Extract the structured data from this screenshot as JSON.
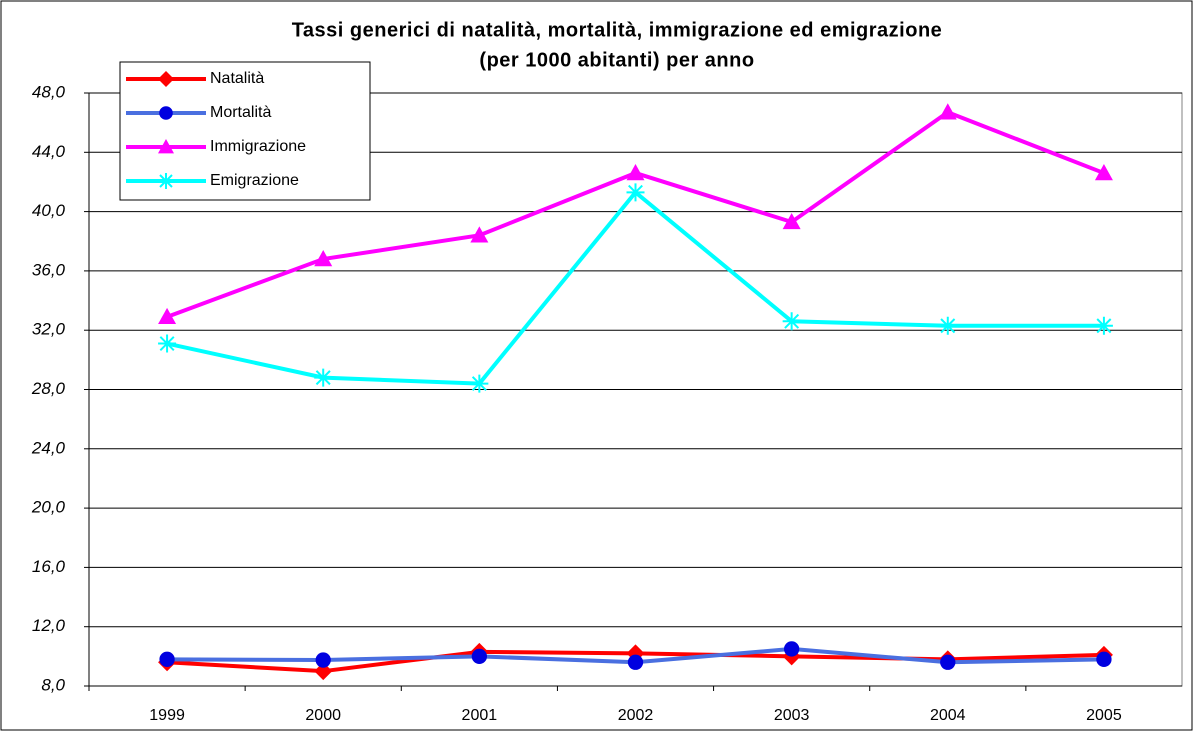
{
  "chart_data": {
    "type": "line",
    "title": "Tassi generici di natalità, mortalità, immigrazione ed emigrazione",
    "subtitle": "(per 1000 abitanti) per anno",
    "categories": [
      "1999",
      "2000",
      "2001",
      "2002",
      "2003",
      "2004",
      "2005"
    ],
    "series": [
      {
        "name": "Natalità",
        "color": "#ff0000",
        "marker": "diamond",
        "values": [
          9.6,
          9.0,
          10.3,
          10.2,
          10.0,
          9.8,
          10.1
        ]
      },
      {
        "name": "Mortalità",
        "color": "#4a6fe0",
        "marker": "circle",
        "markerColor": "#0000e0",
        "values": [
          9.8,
          9.75,
          10.0,
          9.6,
          10.5,
          9.6,
          9.8
        ]
      },
      {
        "name": "Immigrazione",
        "color": "#ff00ff",
        "marker": "triangle",
        "values": [
          32.9,
          36.8,
          38.4,
          42.6,
          39.3,
          46.7,
          42.6
        ]
      },
      {
        "name": "Emigrazione",
        "color": "#00ffff",
        "marker": "asterisk",
        "values": [
          31.1,
          28.8,
          28.4,
          41.3,
          32.6,
          32.3,
          32.3
        ]
      }
    ],
    "ylim": [
      8,
      48
    ],
    "yticks": [
      {
        "value": 8,
        "label": "8,0"
      },
      {
        "value": 12,
        "label": "12,0"
      },
      {
        "value": 16,
        "label": "16,0"
      },
      {
        "value": 20,
        "label": "20,0"
      },
      {
        "value": 24,
        "label": "24,0"
      },
      {
        "value": 28,
        "label": "28,0"
      },
      {
        "value": 32,
        "label": "32,0"
      },
      {
        "value": 36,
        "label": "36,0"
      },
      {
        "value": 40,
        "label": "40,0"
      },
      {
        "value": 44,
        "label": "44,0"
      },
      {
        "value": 48,
        "label": "48,0"
      }
    ],
    "grid": true,
    "legend": "top-left"
  }
}
